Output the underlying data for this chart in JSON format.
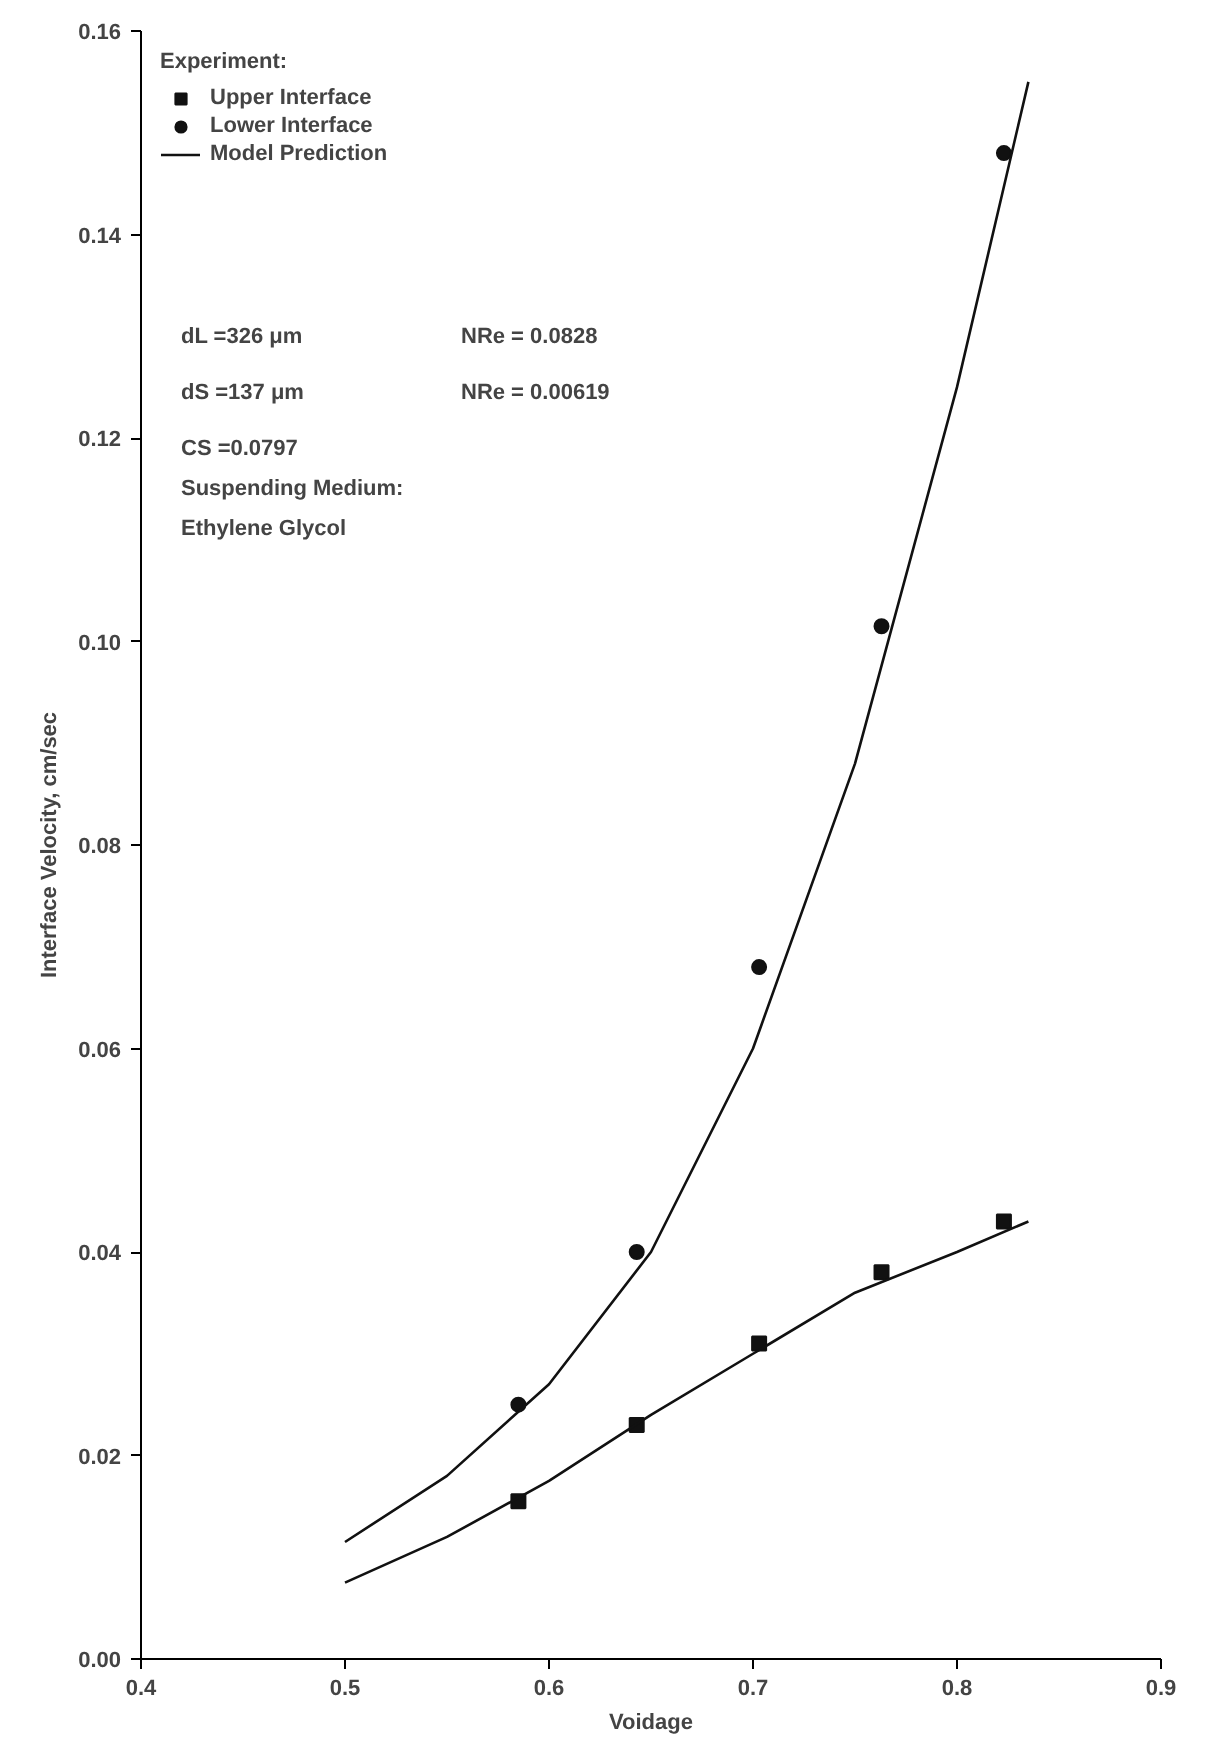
{
  "chart_data": {
    "type": "scatter",
    "xlabel": "Voidage",
    "ylabel": "Interface Velocity, cm/sec",
    "legend_title": "Experiment:",
    "legend": "top left",
    "grid": false,
    "xlim": [
      0.4,
      0.9
    ],
    "xticks": [
      0.4,
      0.5,
      0.6,
      0.7,
      0.8,
      0.9
    ],
    "ylim": [
      0,
      0.16
    ],
    "yticks": [
      {
        "value": 0,
        "label": "0.00"
      },
      0.02,
      0.04,
      0.06,
      0.08,
      {
        "value": 0.1,
        "label": "0.10"
      },
      0.12,
      0.14,
      0.16
    ],
    "series": [
      {
        "name": "Upper Interface",
        "marker": "square",
        "color": "#111111",
        "x": [
          0.585,
          0.643,
          0.703,
          0.763,
          0.823
        ],
        "values": [
          0.0155,
          0.023,
          0.031,
          0.038,
          0.043
        ]
      },
      {
        "name": "Lower Interface",
        "marker": "circle",
        "color": "#111111",
        "x": [
          0.585,
          0.643,
          0.703,
          0.763,
          0.823
        ],
        "values": [
          0.025,
          0.04,
          0.068,
          0.1015,
          0.148
        ]
      },
      {
        "name": "Model Prediction",
        "type": "line",
        "line_style": "solid",
        "color": "#111111",
        "x": [
          0.5,
          0.55,
          0.6,
          0.65,
          0.7,
          0.75,
          0.8,
          0.835
        ],
        "values": [
          0.0115,
          0.018,
          0.027,
          0.04,
          0.06,
          0.088,
          0.125,
          0.155
        ]
      },
      {
        "type": "line",
        "line_style": "solid",
        "color": "#111111",
        "x": [
          0.5,
          0.55,
          0.6,
          0.65,
          0.7,
          0.75,
          0.8,
          0.835
        ],
        "values": [
          0.0075,
          0.012,
          0.0175,
          0.024,
          0.03,
          0.036,
          0.04,
          0.043
        ]
      }
    ],
    "annotations": [
      "dL =326 μm",
      "NRe = 0.0828",
      "dS =137 μm",
      "NRe = 0.00619",
      "CS =0.0797",
      "Suspending Medium:",
      "Ethylene Glycol"
    ]
  }
}
